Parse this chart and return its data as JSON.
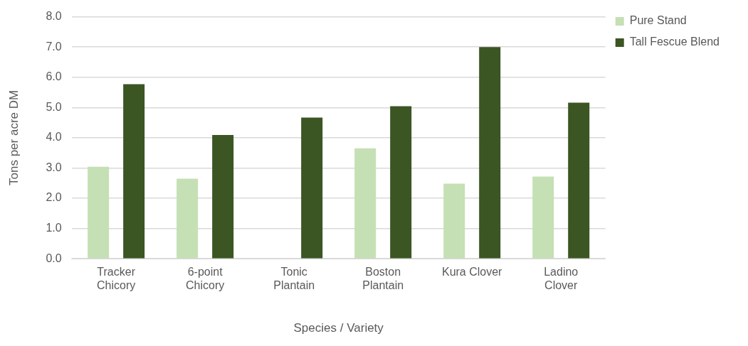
{
  "chart_data": {
    "type": "bar",
    "xlabel": "Species / Variety",
    "ylabel": "Tons per acre DM",
    "categories": [
      "Tracker Chicory",
      "6-point Chicory",
      "Tonic Plantain",
      "Boston Plantain",
      "Kura Clover",
      "Ladino Clover"
    ],
    "series": [
      {
        "name": "Pure Stand",
        "color": "#c5e0b4",
        "values": [
          3.04,
          2.65,
          null,
          3.65,
          2.48,
          2.72
        ]
      },
      {
        "name": "Tall Fescue Blend",
        "color": "#3b5523",
        "values": [
          5.77,
          4.09,
          4.67,
          5.04,
          7.0,
          5.16
        ]
      }
    ],
    "ylim": [
      0,
      8
    ],
    "yticks": [
      {
        "value": 0,
        "label": "0.0"
      },
      {
        "value": 1,
        "label": "1.0"
      },
      {
        "value": 2,
        "label": "2.0"
      },
      {
        "value": 3,
        "label": "3.0"
      },
      {
        "value": 4,
        "label": "4.0"
      },
      {
        "value": 5,
        "label": "5.0"
      },
      {
        "value": 6,
        "label": "6.0"
      },
      {
        "value": 7,
        "label": "7.0"
      },
      {
        "value": 8,
        "label": "8.0"
      }
    ],
    "grid": "y",
    "legend": "top right"
  }
}
